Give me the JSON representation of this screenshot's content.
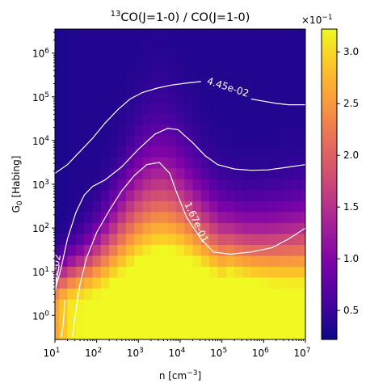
{
  "chart_data": {
    "type": "heatmap",
    "title": {
      "prefix": "13",
      "main": "CO(J=1-0) / CO(J=1-0)"
    },
    "xlabel": {
      "prefix": "n [cm",
      "sup": "−3",
      "suffix": "]"
    },
    "ylabel": {
      "main": "G",
      "sub": "0",
      "suffix": " [Habing]"
    },
    "x_scale": "log",
    "y_scale": "log",
    "xlim": [
      1,
      7
    ],
    "ylim": [
      -0.55,
      6.55
    ],
    "x_ticks": [
      {
        "exp": 1,
        "base": "10",
        "pow": "1"
      },
      {
        "exp": 2,
        "base": "10",
        "pow": "2"
      },
      {
        "exp": 3,
        "base": "10",
        "pow": "3"
      },
      {
        "exp": 4,
        "base": "10",
        "pow": "4"
      },
      {
        "exp": 5,
        "base": "10",
        "pow": "5"
      },
      {
        "exp": 6,
        "base": "10",
        "pow": "6"
      },
      {
        "exp": 7,
        "base": "10",
        "pow": "7"
      }
    ],
    "y_ticks": [
      {
        "exp": 0,
        "base": "10",
        "pow": "0"
      },
      {
        "exp": 1,
        "base": "10",
        "pow": "1"
      },
      {
        "exp": 2,
        "base": "10",
        "pow": "2"
      },
      {
        "exp": 3,
        "base": "10",
        "pow": "3"
      },
      {
        "exp": 4,
        "base": "10",
        "pow": "4"
      },
      {
        "exp": 5,
        "base": "10",
        "pow": "5"
      },
      {
        "exp": 6,
        "base": "10",
        "pow": "6"
      }
    ],
    "colormap": "plasma",
    "colorbar": {
      "vmin": 0.22,
      "vmax": 3.22,
      "ticks": [
        {
          "value": 0.5,
          "label": "0.5"
        },
        {
          "value": 1.0,
          "label": "1.0"
        },
        {
          "value": 1.5,
          "label": "1.5"
        },
        {
          "value": 2.0,
          "label": "2.0"
        },
        {
          "value": 2.5,
          "label": "2.5"
        },
        {
          "value": 3.0,
          "label": "3.0"
        }
      ],
      "multiplier": {
        "prefix": "×10",
        "sup": "−1"
      }
    },
    "grid": {
      "x": [
        1.0,
        1.2,
        1.4,
        1.6,
        1.8,
        2.0,
        2.2,
        2.4,
        2.6,
        2.8,
        3.0,
        3.2,
        3.4,
        3.6,
        3.8,
        4.0,
        4.2,
        4.4,
        4.6,
        4.8,
        5.0,
        5.2,
        5.4,
        5.6,
        5.8,
        6.0,
        6.2,
        6.4,
        6.6,
        6.8,
        7.0
      ],
      "y": [
        -0.5,
        -0.25,
        0.0,
        0.25,
        0.5,
        0.75,
        1.0,
        1.25,
        1.5,
        1.75,
        2.0,
        2.25,
        2.5,
        2.75,
        3.0,
        3.25,
        3.5,
        3.75,
        4.0,
        4.25,
        4.5,
        4.75,
        5.0,
        5.25,
        5.5,
        5.75,
        6.0,
        6.25,
        6.5
      ],
      "description_values": "log10(n) and log10(G0) grid positions"
    },
    "contours": [
      {
        "level": 0.0445,
        "label": "4.45e-02",
        "points": [
          [
            1.0,
            3.25
          ],
          [
            1.3,
            3.45
          ],
          [
            1.6,
            3.75
          ],
          [
            1.9,
            4.05
          ],
          [
            2.2,
            4.4
          ],
          [
            2.5,
            4.7
          ],
          [
            2.8,
            4.95
          ],
          [
            3.1,
            5.1
          ],
          [
            3.45,
            5.2
          ],
          [
            3.8,
            5.27
          ],
          [
            4.2,
            5.32
          ],
          [
            4.5,
            5.35
          ]
        ],
        "points2": [
          [
            5.7,
            4.95
          ],
          [
            6.0,
            4.9
          ],
          [
            6.3,
            4.85
          ],
          [
            6.6,
            4.82
          ],
          [
            7.0,
            4.82
          ]
        ]
      },
      {
        "level": 0.0445,
        "label": "",
        "points": [
          [
            1.0,
            0.55
          ],
          [
            1.15,
            1.1
          ],
          [
            1.3,
            1.75
          ],
          [
            1.5,
            2.35
          ],
          [
            1.7,
            2.75
          ],
          [
            1.9,
            2.95
          ],
          [
            2.2,
            3.1
          ],
          [
            2.6,
            3.4
          ],
          [
            3.0,
            3.8
          ],
          [
            3.4,
            4.15
          ],
          [
            3.7,
            4.28
          ],
          [
            3.95,
            4.25
          ],
          [
            4.3,
            3.95
          ],
          [
            4.6,
            3.65
          ],
          [
            4.9,
            3.45
          ],
          [
            5.3,
            3.35
          ],
          [
            5.7,
            3.32
          ],
          [
            6.1,
            3.33
          ],
          [
            6.5,
            3.38
          ],
          [
            7.0,
            3.45
          ]
        ]
      },
      {
        "level": 0.0445,
        "label": "4.45e-02",
        "points": [
          [
            1.15,
            -0.5
          ],
          [
            1.2,
            -0.2
          ],
          [
            1.22,
            0.1
          ],
          [
            1.24,
            0.35
          ]
        ],
        "label_points": [
          [
            1.0,
            0.55
          ],
          [
            1.1,
            1.15
          ]
        ]
      },
      {
        "level": 0.167,
        "label": "1.67e-01",
        "points": [
          [
            1.42,
            -0.5
          ],
          [
            1.5,
            0.1
          ],
          [
            1.6,
            0.7
          ],
          [
            1.75,
            1.3
          ],
          [
            2.0,
            1.9
          ],
          [
            2.3,
            2.4
          ],
          [
            2.6,
            2.85
          ],
          [
            2.9,
            3.2
          ],
          [
            3.2,
            3.45
          ],
          [
            3.5,
            3.5
          ],
          [
            3.75,
            3.25
          ],
          [
            3.9,
            2.85
          ],
          [
            4.15,
            2.25
          ],
          [
            4.5,
            1.75
          ],
          [
            4.8,
            1.45
          ],
          [
            5.2,
            1.4
          ],
          [
            5.7,
            1.45
          ],
          [
            6.2,
            1.55
          ],
          [
            6.6,
            1.75
          ],
          [
            7.0,
            2.0
          ]
        ]
      }
    ]
  }
}
